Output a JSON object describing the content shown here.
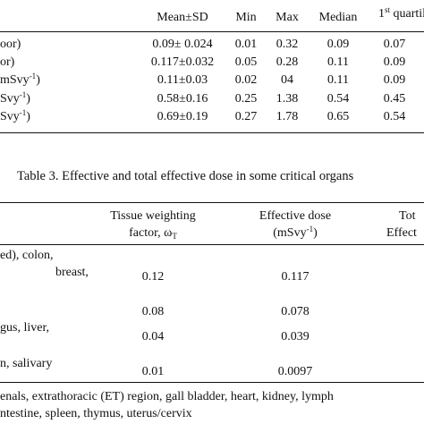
{
  "table2": {
    "headers": {
      "mean_sd": "Mean±SD",
      "min": "Min",
      "max": "Max",
      "median": "Median",
      "q1_num": "1",
      "q1_sup": "st",
      "q1_word": "quartile"
    },
    "rows": [
      {
        "label": "oor)",
        "label_sup": "",
        "label_tail": "",
        "mean": "0.09± 0.024",
        "min": "0.01",
        "max": "0.32",
        "median": "0.09",
        "q1": "0.07"
      },
      {
        "label": "or)",
        "label_sup": "",
        "label_tail": "",
        "mean": "0.117±0.032",
        "min": "0.05",
        "max": "0.28",
        "median": "0.11",
        "q1": "0.09"
      },
      {
        "label": "mSvy",
        "label_sup": "-1",
        "label_tail": ")",
        "mean": "0.11±0.03",
        "min": "0.02",
        "max": "04",
        "median": "0.11",
        "q1": "0.09"
      },
      {
        "label": "Svy",
        "label_sup": "-1",
        "label_tail": ")",
        "mean": "0.58±0.16",
        "min": "0.25",
        "max": "1.38",
        "median": "0.54",
        "q1": "0.45"
      },
      {
        "label": "Svy",
        "label_sup": "-1",
        "label_tail": ")",
        "mean": "0.69±0.19",
        "min": "0.27",
        "max": "1.78",
        "median": "0.65",
        "q1": "0.54"
      }
    ]
  },
  "table3": {
    "caption": "Table 3. Effective and total effective dose in some critical organs",
    "headers": {
      "tw_line1": "Tissue weighting",
      "tw_line2": "factor, ω",
      "tw_sub": "T",
      "ed_line1": "Effective dose",
      "ed_line2": "(mSvy",
      "ed_sup": "-1",
      "ed_tail": ")",
      "tot_line1": "Tot",
      "tot_line2": "Effect"
    },
    "organ_fragments": {
      "f1": "ed),   colon,",
      "f2": "breast,",
      "f3": "gus,     liver,",
      "f4": "n,   salivary"
    },
    "rows": [
      {
        "wt": "0.12",
        "ed": "0.117"
      },
      {
        "wt": "0.08",
        "ed": "0.078"
      },
      {
        "wt": "0.04",
        "ed": "0.039"
      },
      {
        "wt": "0.01",
        "ed": "0.0097"
      }
    ],
    "footnote": {
      "line1": "enals, extrathoracic (ET) region, gall bladder, heart, kidney, lymph",
      "line2": "ntestine, spleen, thymus, uterus/cervix"
    }
  }
}
